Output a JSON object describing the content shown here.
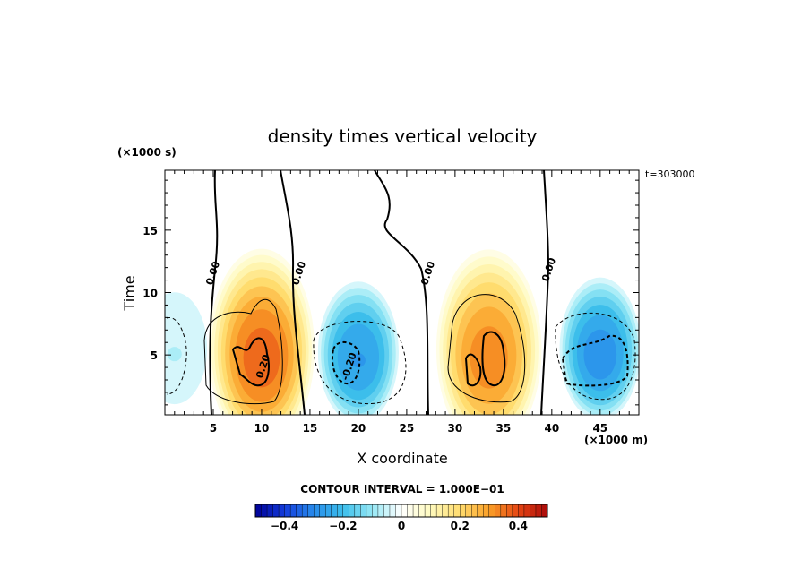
{
  "chart_data": {
    "type": "heatmap",
    "title": "density times vertical velocity",
    "xlabel": "X coordinate",
    "ylabel": "Time",
    "x_unit": "(×1000 m)",
    "y_unit": "(×1000 s)",
    "time_label": "t=303000",
    "xlim": [
      0,
      49
    ],
    "ylim": [
      0.2,
      19.8
    ],
    "x_ticks": [
      5,
      10,
      15,
      20,
      25,
      30,
      35,
      40,
      45
    ],
    "y_ticks": [
      5,
      10,
      15
    ],
    "contour_interval_text": "CONTOUR INTERVAL = 1.000E−01",
    "contour_labels": [
      "0.00",
      "0.00",
      "0.00",
      "0.00",
      "0.20",
      "-0.20"
    ],
    "colorbar": {
      "min": -0.5,
      "max": 0.5,
      "step": 0.02,
      "tick_values": [
        -0.4,
        -0.2,
        0,
        0.2,
        0.4
      ],
      "tick_labels": [
        "−0.4",
        "−0.2",
        "0",
        "0.2",
        "0.4"
      ]
    },
    "field_features": [
      {
        "x": 10,
        "y": 4.5,
        "peak": 0.38,
        "sign": "positive"
      },
      {
        "x": 33.5,
        "y": 4.5,
        "peak": 0.34,
        "sign": "positive"
      },
      {
        "x": 20,
        "y": 4.5,
        "peak": -0.28,
        "sign": "negative"
      },
      {
        "x": 45,
        "y": 4.8,
        "peak": -0.3,
        "sign": "negative"
      },
      {
        "x": 1,
        "y": 5,
        "peak": -0.08,
        "sign": "negative"
      }
    ]
  }
}
